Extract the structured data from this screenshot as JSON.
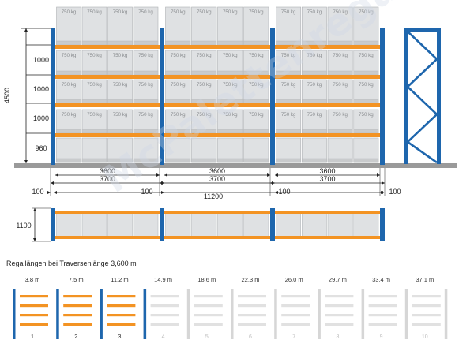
{
  "colors": {
    "upright": "#1e66ad",
    "beam": "#f39323",
    "pallet_fill": "#dfe1e3",
    "pallet_stroke": "#aeb1b4",
    "floor": "#9a9a9a",
    "dim": "#222222",
    "faded": "#c9c9c9"
  },
  "front": {
    "pallet_label": "750 kg",
    "heights": {
      "total": "4500",
      "levels": [
        "1000",
        "1000",
        "1000",
        "960"
      ]
    },
    "bays": [
      {
        "beam": "3600",
        "pitch": "3700"
      },
      {
        "beam": "3600",
        "pitch": "3700"
      },
      {
        "beam": "3600",
        "pitch": "3700"
      }
    ],
    "end_gaps": [
      "100",
      "100",
      "100",
      "100"
    ],
    "total_length": "11200"
  },
  "top_view": {
    "depth": "1100"
  },
  "legend": {
    "title": "Regallängen bei Traversenlänge 3,600 m",
    "items": [
      {
        "length": "3,8 m",
        "num": "1",
        "active": true
      },
      {
        "length": "7,5 m",
        "num": "2",
        "active": true
      },
      {
        "length": "11,2 m",
        "num": "3",
        "active": true
      },
      {
        "length": "14,9 m",
        "num": "4",
        "active": false
      },
      {
        "length": "18,6 m",
        "num": "5",
        "active": false
      },
      {
        "length": "22,3 m",
        "num": "6",
        "active": false
      },
      {
        "length": "26,0 m",
        "num": "7",
        "active": false
      },
      {
        "length": "29,7 m",
        "num": "8",
        "active": false
      },
      {
        "length": "33,4 m",
        "num": "9",
        "active": false
      },
      {
        "length": "37,1 m",
        "num": "10",
        "active": false
      }
    ]
  },
  "watermark": "McPalettenregal.de"
}
